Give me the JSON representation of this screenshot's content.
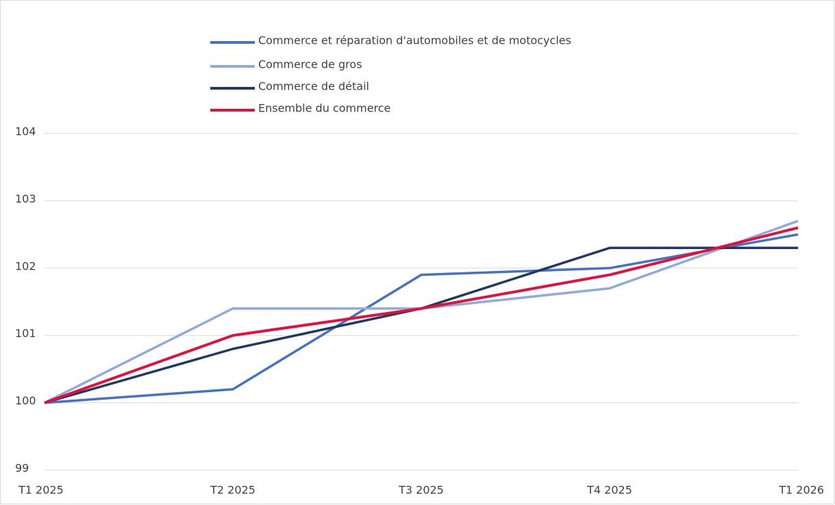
{
  "chart_data": {
    "type": "line",
    "categories": [
      "T1 2025",
      "T2 2025",
      "T3 2025",
      "T4 2025",
      "T1 2026"
    ],
    "series": [
      {
        "name": "Commerce et réparation d'automobiles et de motocycles",
        "color": "#4472c4",
        "values": [
          100,
          100.2,
          101.9,
          102.0,
          102.5
        ]
      },
      {
        "name": "Commerce de gros",
        "color": "#8faadc",
        "values": [
          100,
          101.4,
          101.4,
          101.7,
          102.7
        ]
      },
      {
        "name": "Commerce de détail",
        "color": "#1f3864",
        "values": [
          100,
          100.8,
          101.4,
          102.3,
          102.3
        ]
      },
      {
        "name": "Ensemble du commerce",
        "color": "#e0103f",
        "values": [
          100,
          101.0,
          101.4,
          101.9,
          102.6
        ]
      }
    ],
    "ylim": [
      99,
      104
    ],
    "yticks": [
      99,
      100,
      101,
      102,
      103,
      104
    ],
    "grid": true,
    "legend": "top"
  }
}
